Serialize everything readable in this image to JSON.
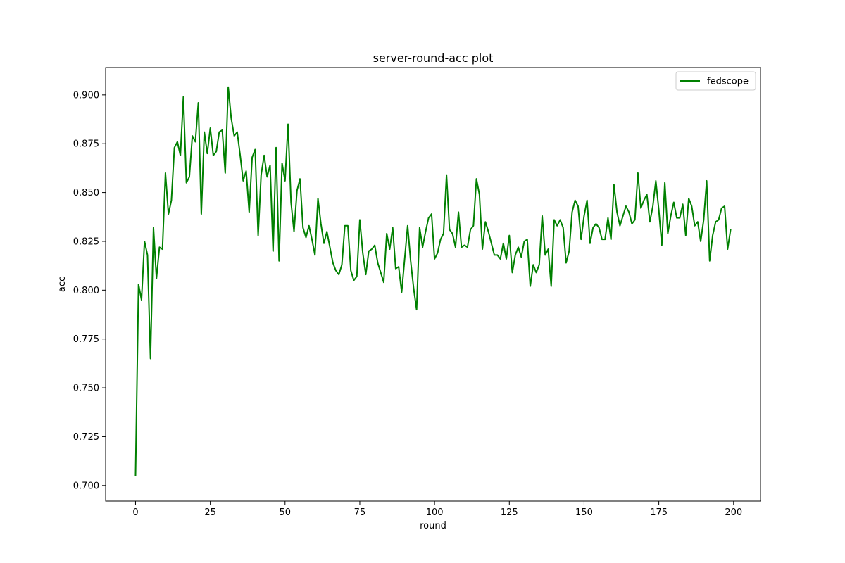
{
  "chart_data": {
    "type": "line",
    "title": "server-round-acc plot",
    "xlabel": "round",
    "ylabel": "acc",
    "xlim": [
      -10,
      209
    ],
    "ylim": [
      0.692,
      0.914
    ],
    "xticks": [
      0,
      25,
      50,
      75,
      100,
      125,
      150,
      175,
      200
    ],
    "yticks": [
      0.7,
      0.725,
      0.75,
      0.775,
      0.8,
      0.825,
      0.85,
      0.875,
      0.9
    ],
    "ytick_labels": [
      "0.700",
      "0.725",
      "0.750",
      "0.775",
      "0.800",
      "0.825",
      "0.850",
      "0.875",
      "0.900"
    ],
    "grid": false,
    "legend_position": "top-right",
    "series": [
      {
        "name": "fedscope",
        "color": "#008000",
        "x_start": 0,
        "values": [
          0.705,
          0.803,
          0.795,
          0.825,
          0.818,
          0.765,
          0.832,
          0.806,
          0.822,
          0.821,
          0.86,
          0.839,
          0.846,
          0.873,
          0.876,
          0.869,
          0.899,
          0.855,
          0.858,
          0.879,
          0.876,
          0.896,
          0.839,
          0.881,
          0.87,
          0.883,
          0.869,
          0.871,
          0.881,
          0.882,
          0.86,
          0.904,
          0.888,
          0.879,
          0.881,
          0.869,
          0.856,
          0.861,
          0.84,
          0.868,
          0.872,
          0.828,
          0.859,
          0.869,
          0.858,
          0.864,
          0.82,
          0.873,
          0.815,
          0.865,
          0.856,
          0.885,
          0.845,
          0.83,
          0.851,
          0.857,
          0.832,
          0.827,
          0.833,
          0.826,
          0.818,
          0.847,
          0.834,
          0.824,
          0.83,
          0.822,
          0.814,
          0.81,
          0.808,
          0.813,
          0.833,
          0.833,
          0.81,
          0.805,
          0.807,
          0.836,
          0.819,
          0.808,
          0.82,
          0.821,
          0.823,
          0.814,
          0.809,
          0.804,
          0.829,
          0.821,
          0.832,
          0.811,
          0.812,
          0.799,
          0.816,
          0.833,
          0.815,
          0.801,
          0.79,
          0.832,
          0.822,
          0.83,
          0.837,
          0.839,
          0.816,
          0.819,
          0.826,
          0.829,
          0.859,
          0.831,
          0.829,
          0.822,
          0.84,
          0.822,
          0.823,
          0.822,
          0.831,
          0.833,
          0.857,
          0.849,
          0.821,
          0.835,
          0.83,
          0.824,
          0.818,
          0.818,
          0.816,
          0.824,
          0.816,
          0.828,
          0.809,
          0.818,
          0.822,
          0.817,
          0.825,
          0.826,
          0.802,
          0.813,
          0.809,
          0.813,
          0.838,
          0.818,
          0.821,
          0.802,
          0.836,
          0.833,
          0.836,
          0.832,
          0.814,
          0.82,
          0.84,
          0.846,
          0.843,
          0.826,
          0.838,
          0.846,
          0.824,
          0.832,
          0.834,
          0.832,
          0.826,
          0.826,
          0.837,
          0.826,
          0.854,
          0.84,
          0.833,
          0.838,
          0.843,
          0.84,
          0.834,
          0.836,
          0.86,
          0.842,
          0.846,
          0.849,
          0.835,
          0.843,
          0.856,
          0.841,
          0.823,
          0.855,
          0.829,
          0.838,
          0.845,
          0.837,
          0.837,
          0.844,
          0.828,
          0.847,
          0.843,
          0.833,
          0.835,
          0.825,
          0.836,
          0.856,
          0.815,
          0.828,
          0.835,
          0.836,
          0.842,
          0.843,
          0.821,
          0.831
        ]
      }
    ]
  }
}
